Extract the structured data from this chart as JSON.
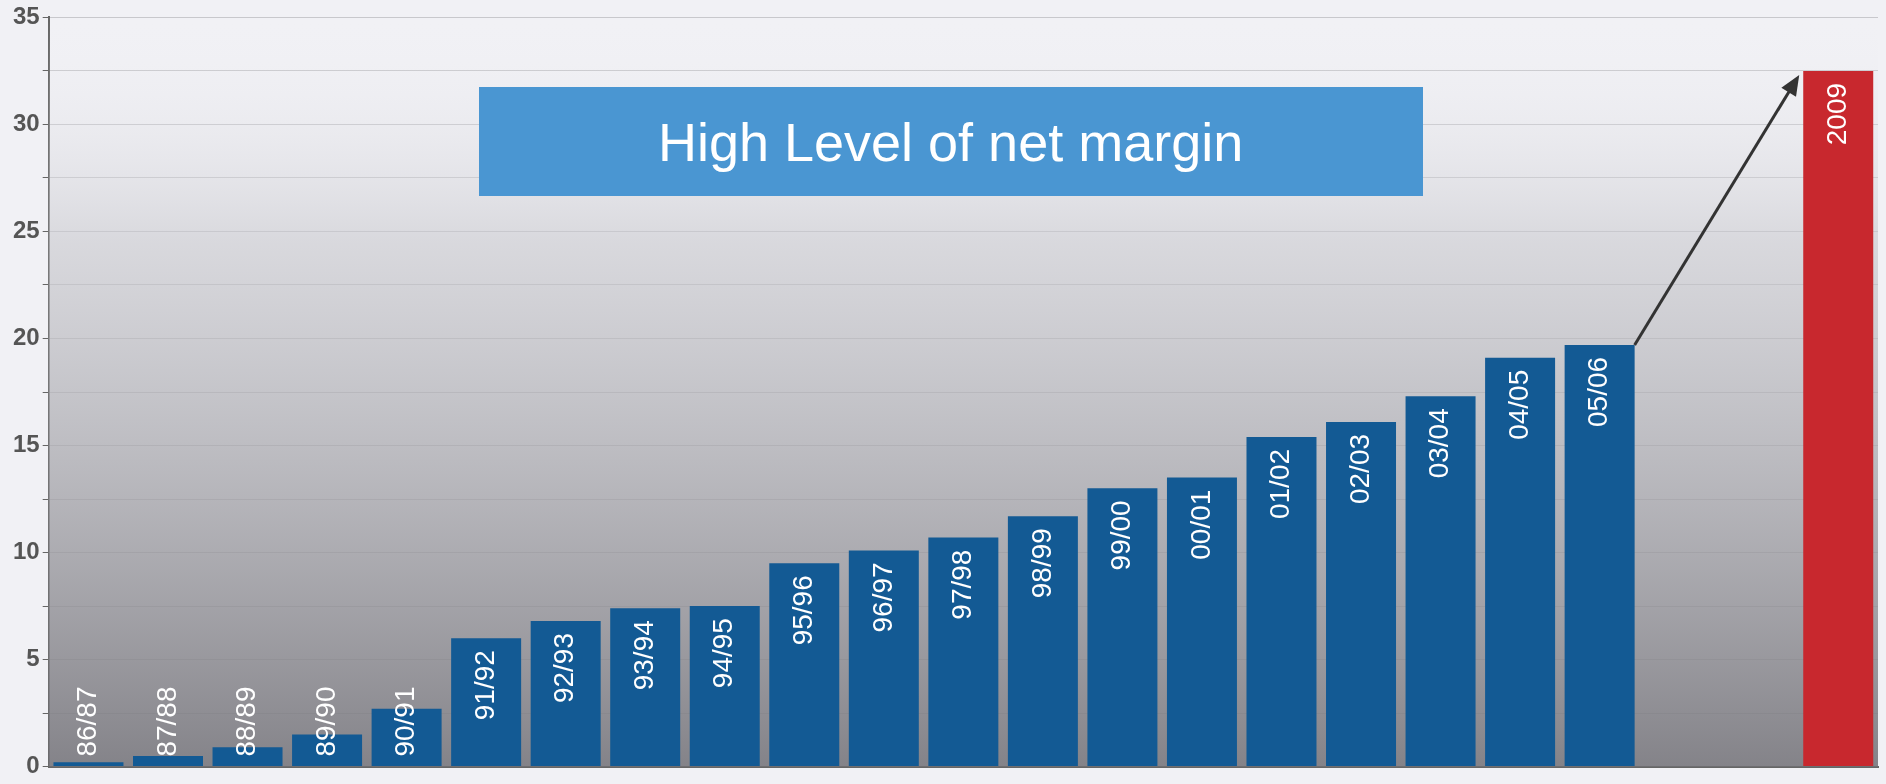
{
  "chart_data": {
    "type": "bar",
    "categories": [
      "86/87",
      "87/88",
      "88/89",
      "89/90",
      "90/91",
      "91/92",
      "92/93",
      "93/94",
      "94/95",
      "95/96",
      "96/97",
      "97/98",
      "98/99",
      "99/00",
      "00/01",
      "01/02",
      "02/03",
      "03/04",
      "04/05",
      "05/06",
      null,
      null,
      "2009"
    ],
    "values": [
      0.2,
      0.5,
      0.9,
      1.5,
      2.7,
      6.0,
      6.8,
      7.4,
      7.5,
      9.5,
      10.1,
      10.7,
      11.7,
      13.0,
      13.5,
      15.4,
      16.1,
      17.3,
      19.1,
      19.7,
      null,
      null,
      32.5
    ],
    "colors": [
      "#135a94",
      "#135a94",
      "#135a94",
      "#135a94",
      "#135a94",
      "#135a94",
      "#135a94",
      "#135a94",
      "#135a94",
      "#135a94",
      "#135a94",
      "#135a94",
      "#135a94",
      "#135a94",
      "#135a94",
      "#135a94",
      "#135a94",
      "#135a94",
      "#135a94",
      "#135a94",
      "#135a94",
      "#135a94",
      "#c8282e"
    ],
    "ylim": [
      0,
      35
    ],
    "yticks": [
      0,
      {
        "value": 2.5,
        "label": null
      },
      5,
      {
        "value": 7.5,
        "label": null
      },
      10,
      {
        "value": 12.5,
        "label": null
      },
      15,
      {
        "value": 17.5,
        "label": null
      },
      20,
      {
        "value": 22.5,
        "label": null
      },
      25,
      {
        "value": 27.5,
        "label": null
      },
      30,
      {
        "value": 32.5,
        "label": null
      },
      35
    ],
    "grid": "y",
    "legend": false,
    "tick_labels": "y",
    "annotations": [
      "High Level of net margin"
    ]
  }
}
